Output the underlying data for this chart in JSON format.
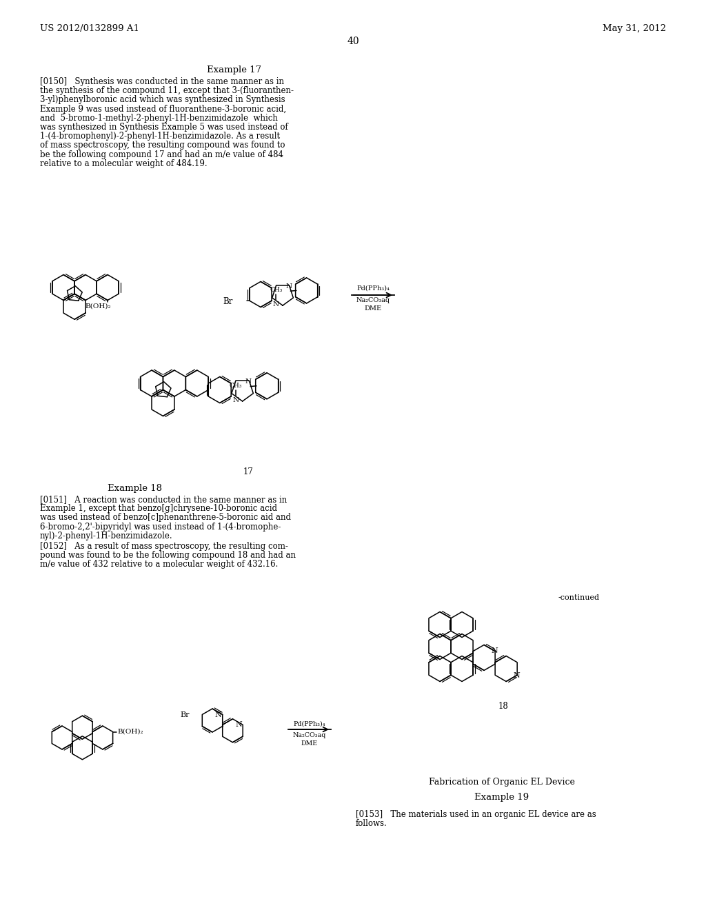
{
  "bg": "#ffffff",
  "header_left": "US 2012/0132899 A1",
  "header_right": "May 31, 2012",
  "page_num": "40",
  "ex17_title": "Example 17",
  "ex18_title": "Example 18",
  "ex19_title": "Example 19",
  "fab_title": "Fabrication of Organic EL Device",
  "continued": "-continued",
  "label17": "17",
  "label18": "18",
  "lines_0150": [
    "[0150]   Synthesis was conducted in the same manner as in",
    "the synthesis of the compound 11, except that 3-(fluoranthen-",
    "3-yl)phenylboronic acid which was synthesized in Synthesis",
    "Example 9 was used instead of fluoranthene-3-boronic acid,",
    "and  5-bromo-1-methyl-2-phenyl-1H-benzimidazole  which",
    "was synthesized in Synthesis Example 5 was used instead of",
    "1-(4-bromophenyl)-2-phenyl-1H-benzimidazole. As a result",
    "of mass spectroscopy, the resulting compound was found to",
    "be the following compound 17 and had an m/e value of 484",
    "relative to a molecular weight of 484.19."
  ],
  "lines_0151": [
    "[0151]   A reaction was conducted in the same manner as in",
    "Example 1, except that benzo[g]chrysene-10-boronic acid",
    "was used instead of benzo[c]phenanthrene-5-boronic aid and",
    "6-bromo-2,2'-bipyridyl was used instead of 1-(4-bromophe-",
    "nyl)-2-phenyl-1H-benzimidazole."
  ],
  "lines_0152": [
    "[0152]   As a result of mass spectroscopy, the resulting com-",
    "pound was found to be the following compound 18 and had an",
    "m/e value of 432 relative to a molecular weight of 432.16."
  ],
  "lines_0153": [
    "[0153]   The materials used in an organic EL device are as",
    "follows."
  ]
}
